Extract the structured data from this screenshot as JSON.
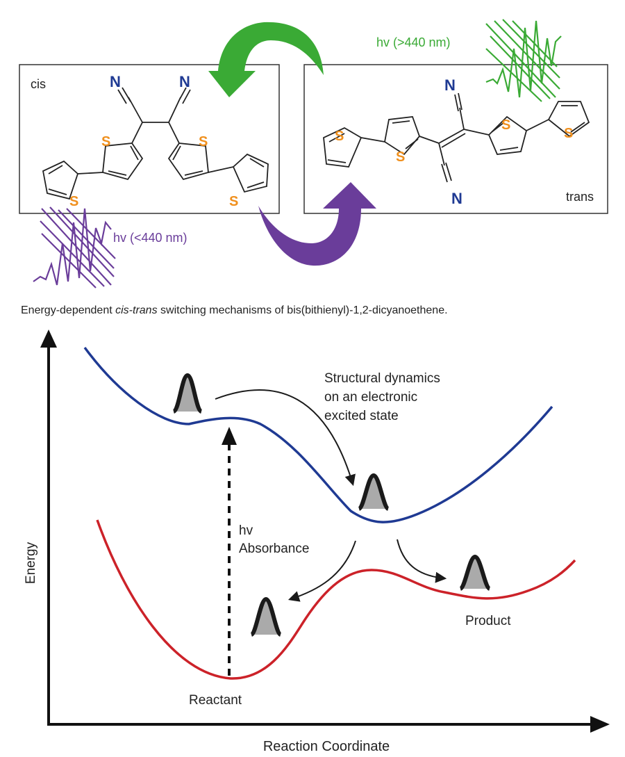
{
  "top_diagram": {
    "cis_label": "cis",
    "trans_label": "trans",
    "nitrogen": "N",
    "sulfur": "S",
    "green_light_label": "hv (>440 nm)",
    "purple_light_label": "hv (<440 nm)"
  },
  "caption": {
    "prefix": "Energy-dependent ",
    "italic": "cis-trans",
    "suffix": " switching mechanisms of bis(bithienyl)-1,2-dicyanoethene."
  },
  "energy_diagram": {
    "y_axis_label": "Energy",
    "x_axis_label": "Reaction Coordinate",
    "excited_state_note": [
      "Structural dynamics",
      "on an electronic",
      "excited state"
    ],
    "absorbance_label": [
      "hv",
      "Absorbance"
    ],
    "reactant_label": "Reactant",
    "product_label": "Product"
  },
  "colors": {
    "excited_state_curve": "#1f3a93",
    "ground_state_curve": "#cc2229",
    "green_light": "#3aaa35",
    "purple_light": "#6a3d9a",
    "nitrogen": "#1f3a93",
    "sulfur": "#f0901e",
    "wavepacket_fill": "#aaaaaa",
    "text": "#222222"
  }
}
